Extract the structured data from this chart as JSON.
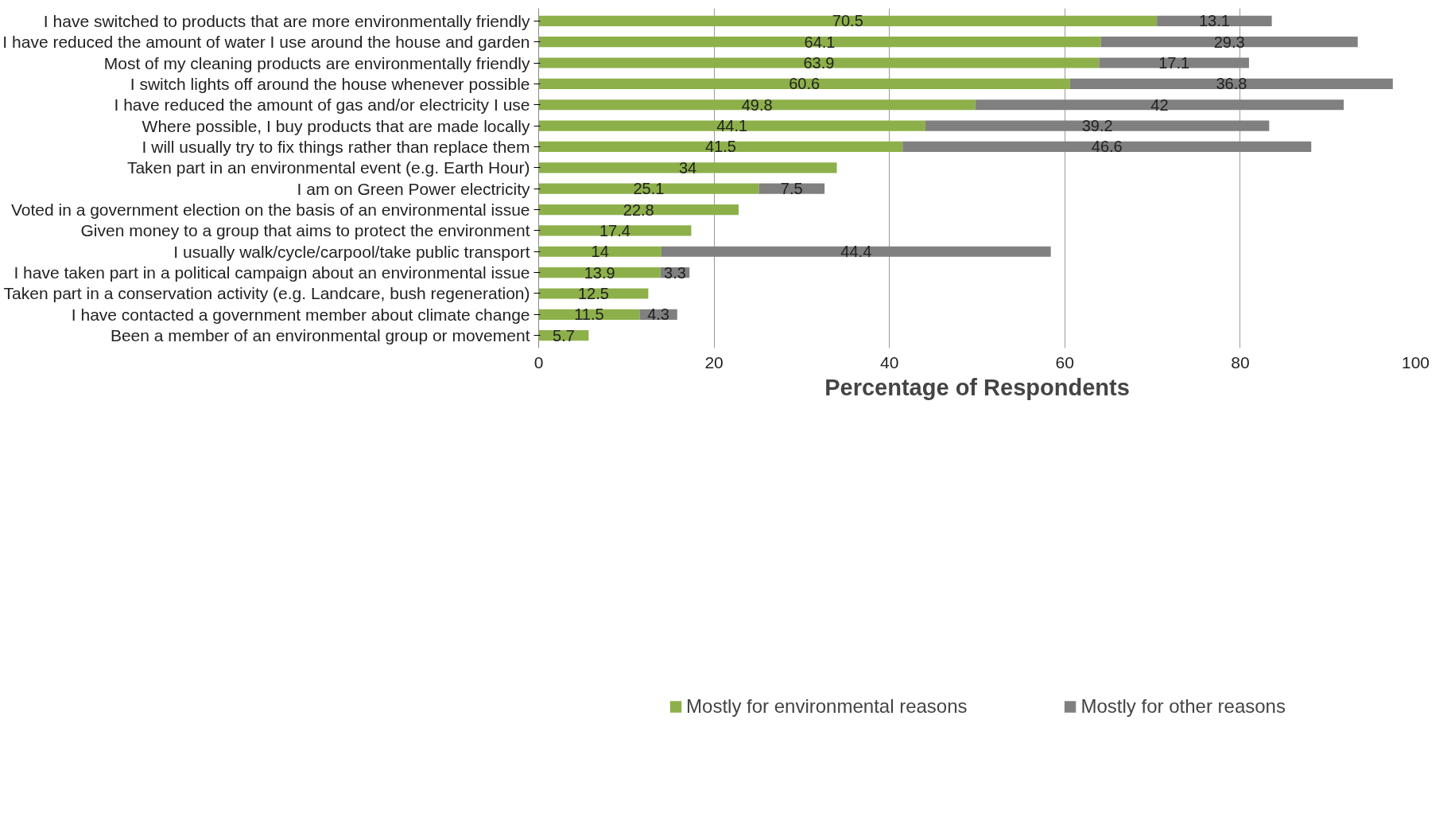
{
  "chart_data": {
    "type": "bar",
    "orientation": "horizontal",
    "stacked": true,
    "categories": [
      "I have switched to products that are more environmentally friendly",
      "I have reduced the amount of water I use around the house and garden",
      "Most of my cleaning products are environmentally friendly",
      "I switch lights off around the house whenever possible",
      "I have reduced the amount of gas and/or electricity I use",
      "Where possible, I buy products that are made locally",
      "I will usually try to fix things rather than replace them",
      "Taken part in an environmental event (e.g. Earth Hour)",
      "I am on Green Power electricity",
      "Voted in a government election on the basis of an environmental issue",
      "Given money to a group that aims to protect the environment",
      "I usually walk/cycle/carpool/take public transport",
      "I have taken part in a political campaign about an environmental issue",
      "Taken part in a conservation activity (e.g. Landcare, bush regeneration)",
      "I have contacted a government member about climate change",
      "Been a member of an environmental group or movement"
    ],
    "series": [
      {
        "name": "Mostly for environmental reasons",
        "color": "#8db04a",
        "values": [
          70.5,
          64.1,
          63.9,
          60.6,
          49.8,
          44.1,
          41.5,
          34,
          25.1,
          22.8,
          17.4,
          14,
          13.9,
          12.5,
          11.5,
          5.7
        ]
      },
      {
        "name": "Mostly for other reasons",
        "color": "#808080",
        "values": [
          13.1,
          29.3,
          17.1,
          36.8,
          42,
          39.2,
          46.6,
          null,
          7.5,
          null,
          null,
          44.4,
          3.3,
          null,
          4.3,
          null
        ]
      }
    ],
    "xlabel": "Percentage of Respondents",
    "xlim": [
      0,
      100
    ],
    "xticks": [
      0,
      20,
      40,
      60,
      80,
      100
    ],
    "grid": "x",
    "legend": "bottom",
    "data_labels": true
  }
}
